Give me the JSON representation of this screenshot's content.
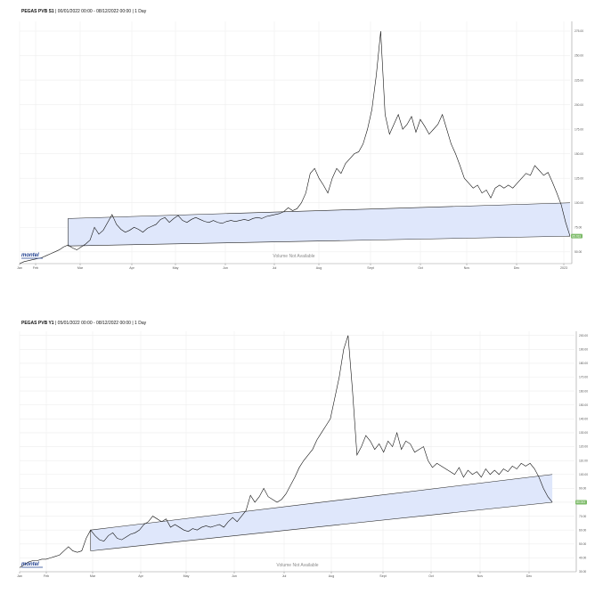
{
  "chart_data": [
    {
      "type": "line",
      "title": "PEGAS PVB S1 | 00/01/2022 00:00 - 08/12/2022 00:00 | 1 Day",
      "title_bold": "PEGAS PVB S1",
      "title_rest": " | 00/01/2022 00:00 - 08/12/2022 00:00 | 1 Day",
      "x_tick_labels": [
        "Jan",
        "Feb",
        "Mar",
        "Apr",
        "May",
        "Jun",
        "Jul",
        "Aug",
        "Sept",
        "Oct",
        "Nov",
        "Dec",
        "2023"
      ],
      "y_tick_labels": [
        "50.00",
        "75.00",
        "100.00",
        "125.00",
        "150.00",
        "175.00",
        "200.00",
        "225.00",
        "250.00",
        "275.00"
      ],
      "ylim": [
        38,
        285
      ],
      "grid": true,
      "annotation": "Volume Not Available",
      "logo": "montel",
      "last_value_label": "65.763",
      "last_value": 66,
      "series": [
        {
          "values": [
            [
              0.0,
              38
            ],
            [
              1.0,
              40
            ],
            [
              2.0,
              41
            ],
            [
              3.0,
              42
            ],
            [
              4.0,
              43
            ],
            [
              5.0,
              44
            ],
            [
              6.0,
              46
            ],
            [
              7.0,
              48
            ],
            [
              8.0,
              50
            ],
            [
              9.0,
              52
            ],
            [
              10.0,
              55
            ],
            [
              11.0,
              57
            ],
            [
              12.0,
              54
            ],
            [
              13.0,
              52
            ],
            [
              14.0,
              55
            ],
            [
              15.0,
              58
            ],
            [
              16.0,
              62
            ],
            [
              17.0,
              75
            ],
            [
              18.0,
              68
            ],
            [
              19.0,
              72
            ],
            [
              20.0,
              80
            ],
            [
              21.0,
              88
            ],
            [
              22.0,
              78
            ],
            [
              23.0,
              73
            ],
            [
              24.0,
              70
            ],
            [
              25.0,
              72
            ],
            [
              26.0,
              75
            ],
            [
              27.0,
              73
            ],
            [
              28.0,
              70
            ],
            [
              29.0,
              74
            ],
            [
              30.0,
              76
            ],
            [
              31.0,
              78
            ],
            [
              32.0,
              83
            ],
            [
              33.0,
              85
            ],
            [
              34.0,
              80
            ],
            [
              35.0,
              84
            ],
            [
              36.0,
              87
            ],
            [
              37.0,
              82
            ],
            [
              38.0,
              80
            ],
            [
              39.0,
              83
            ],
            [
              40.0,
              85
            ],
            [
              41.0,
              83
            ],
            [
              42.0,
              81
            ],
            [
              43.0,
              80
            ],
            [
              44.0,
              82
            ],
            [
              45.0,
              80
            ],
            [
              46.0,
              79
            ],
            [
              47.0,
              81
            ],
            [
              48.0,
              82
            ],
            [
              49.0,
              81
            ],
            [
              50.0,
              82
            ],
            [
              51.0,
              83
            ],
            [
              52.0,
              82
            ],
            [
              53.0,
              84
            ],
            [
              54.0,
              85
            ],
            [
              55.0,
              84
            ],
            [
              56.0,
              86
            ],
            [
              57.0,
              87
            ],
            [
              58.0,
              88
            ],
            [
              59.0,
              89
            ],
            [
              60.0,
              91
            ],
            [
              61.0,
              95
            ],
            [
              62.0,
              92
            ],
            [
              63.0,
              94
            ],
            [
              64.0,
              100
            ],
            [
              65.0,
              110
            ],
            [
              66.0,
              130
            ],
            [
              67.0,
              135
            ],
            [
              68.0,
              125
            ],
            [
              69.0,
              118
            ],
            [
              70.0,
              110
            ],
            [
              71.0,
              125
            ],
            [
              72.0,
              135
            ],
            [
              73.0,
              130
            ],
            [
              74.0,
              140
            ],
            [
              75.0,
              145
            ],
            [
              76.0,
              150
            ],
            [
              77.0,
              152
            ],
            [
              78.0,
              160
            ],
            [
              79.0,
              175
            ],
            [
              80.0,
              195
            ],
            [
              81.0,
              230
            ],
            [
              82.0,
              275
            ],
            [
              83.0,
              190
            ],
            [
              84.0,
              170
            ],
            [
              85.0,
              180
            ],
            [
              86.0,
              190
            ],
            [
              87.0,
              175
            ],
            [
              88.0,
              180
            ],
            [
              89.0,
              188
            ],
            [
              90.0,
              172
            ],
            [
              91.0,
              185
            ],
            [
              92.0,
              178
            ],
            [
              93.0,
              170
            ],
            [
              94.0,
              175
            ],
            [
              95.0,
              180
            ],
            [
              96.0,
              190
            ],
            [
              97.0,
              175
            ],
            [
              98.0,
              160
            ],
            [
              99.0,
              150
            ],
            [
              100.0,
              138
            ],
            [
              101.0,
              125
            ],
            [
              102.0,
              120
            ],
            [
              103.0,
              115
            ],
            [
              104.0,
              118
            ],
            [
              105.0,
              110
            ],
            [
              106.0,
              113
            ],
            [
              107.0,
              105
            ],
            [
              108.0,
              115
            ],
            [
              109.0,
              118
            ],
            [
              110.0,
              115
            ],
            [
              111.0,
              118
            ],
            [
              112.0,
              115
            ],
            [
              113.0,
              120
            ],
            [
              114.0,
              125
            ],
            [
              115.0,
              130
            ],
            [
              116.0,
              128
            ],
            [
              117.0,
              138
            ],
            [
              118.0,
              133
            ],
            [
              119.0,
              128
            ],
            [
              120.0,
              131
            ],
            [
              121.0,
              121
            ],
            [
              122.0,
              110
            ],
            [
              123.0,
              98
            ],
            [
              124.0,
              80
            ],
            [
              125.0,
              66
            ]
          ]
        }
      ],
      "band": {
        "lower": [
          [
            11.0,
            56
          ],
          [
            125.0,
            66
          ]
        ],
        "upper": [
          [
            11.0,
            84
          ],
          [
            125.0,
            100
          ]
        ]
      }
    },
    {
      "type": "line",
      "title": "PEGAS PVB Y1 | 05/01/2022 00:00 - 08/12/2022 00:00 | 1 Day",
      "title_bold": "PEGAS PVB Y1",
      "title_rest": " | 05/01/2022 00:00 - 08/12/2022 00:00 | 1 Day",
      "x_tick_labels": [
        "Jan",
        "Feb",
        "Mar",
        "Apr",
        "May",
        "Jun",
        "Jul",
        "Aug",
        "Sept",
        "Oct",
        "Nov",
        "Dec"
      ],
      "y_tick_labels": [
        "30.00",
        "40.00",
        "50.00",
        "60.00",
        "70.00",
        "80.00",
        "90.00",
        "100.00",
        "110.00",
        "120.00",
        "130.00",
        "140.00",
        "150.00",
        "160.00",
        "170.00",
        "180.00",
        "190.00",
        "200.00"
      ],
      "ylim": [
        30,
        203
      ],
      "grid": true,
      "annotation": "Volume Not Available",
      "logo": "montel",
      "last_value_label": "80.003",
      "last_value": 80,
      "series": [
        {
          "values": [
            [
              0.0,
              33
            ],
            [
              1.0,
              35
            ],
            [
              2.0,
              37
            ],
            [
              3.0,
              38
            ],
            [
              4.0,
              38
            ],
            [
              5.0,
              39
            ],
            [
              6.0,
              39
            ],
            [
              7.0,
              40
            ],
            [
              8.0,
              41
            ],
            [
              9.0,
              42
            ],
            [
              10.0,
              45
            ],
            [
              11.0,
              48
            ],
            [
              12.0,
              45
            ],
            [
              13.0,
              44
            ],
            [
              14.0,
              45
            ],
            [
              15.0,
              54
            ],
            [
              16.0,
              60
            ],
            [
              17.0,
              56
            ],
            [
              18.0,
              53
            ],
            [
              19.0,
              52
            ],
            [
              20.0,
              56
            ],
            [
              21.0,
              58
            ],
            [
              22.0,
              54
            ],
            [
              23.0,
              53
            ],
            [
              24.0,
              55
            ],
            [
              25.0,
              57
            ],
            [
              26.0,
              58
            ],
            [
              27.0,
              60
            ],
            [
              28.0,
              64
            ],
            [
              29.0,
              66
            ],
            [
              30.0,
              70
            ],
            [
              31.0,
              68
            ],
            [
              32.0,
              66
            ],
            [
              33.0,
              68
            ],
            [
              34.0,
              62
            ],
            [
              35.0,
              64
            ],
            [
              36.0,
              62
            ],
            [
              37.0,
              60
            ],
            [
              38.0,
              59
            ],
            [
              39.0,
              61
            ],
            [
              40.0,
              60
            ],
            [
              41.0,
              62
            ],
            [
              42.0,
              63
            ],
            [
              43.0,
              62
            ],
            [
              44.0,
              63
            ],
            [
              45.0,
              64
            ],
            [
              46.0,
              62
            ],
            [
              47.0,
              66
            ],
            [
              48.0,
              69
            ],
            [
              49.0,
              66
            ],
            [
              50.0,
              70
            ],
            [
              51.0,
              74
            ],
            [
              52.0,
              85
            ],
            [
              53.0,
              80
            ],
            [
              54.0,
              84
            ],
            [
              55.0,
              90
            ],
            [
              56.0,
              84
            ],
            [
              57.0,
              82
            ],
            [
              58.0,
              80
            ],
            [
              59.0,
              82
            ],
            [
              60.0,
              86
            ],
            [
              61.0,
              92
            ],
            [
              62.0,
              98
            ],
            [
              63.0,
              105
            ],
            [
              64.0,
              110
            ],
            [
              65.0,
              114
            ],
            [
              66.0,
              118
            ],
            [
              67.0,
              125
            ],
            [
              68.0,
              130
            ],
            [
              69.0,
              135
            ],
            [
              70.0,
              140
            ],
            [
              71.0,
              155
            ],
            [
              72.0,
              170
            ],
            [
              73.0,
              190
            ],
            [
              74.0,
              200
            ],
            [
              75.0,
              160
            ],
            [
              76.0,
              114
            ],
            [
              77.0,
              120
            ],
            [
              78.0,
              128
            ],
            [
              79.0,
              124
            ],
            [
              80.0,
              118
            ],
            [
              81.0,
              122
            ],
            [
              82.0,
              116
            ],
            [
              83.0,
              124
            ],
            [
              84.0,
              120
            ],
            [
              85.0,
              130
            ],
            [
              86.0,
              118
            ],
            [
              87.0,
              124
            ],
            [
              88.0,
              122
            ],
            [
              89.0,
              116
            ],
            [
              90.0,
              118
            ],
            [
              91.0,
              120
            ],
            [
              92.0,
              110
            ],
            [
              93.0,
              105
            ],
            [
              94.0,
              108
            ],
            [
              95.0,
              106
            ],
            [
              96.0,
              104
            ],
            [
              97.0,
              102
            ],
            [
              98.0,
              100
            ],
            [
              99.0,
              105
            ],
            [
              100.0,
              98
            ],
            [
              101.0,
              103
            ],
            [
              102.0,
              100
            ],
            [
              103.0,
              102
            ],
            [
              104.0,
              98
            ],
            [
              105.0,
              104
            ],
            [
              106.0,
              100
            ],
            [
              107.0,
              103
            ],
            [
              108.0,
              100
            ],
            [
              109.0,
              104
            ],
            [
              110.0,
              102
            ],
            [
              111.0,
              106
            ],
            [
              112.0,
              104
            ],
            [
              113.0,
              108
            ],
            [
              114.0,
              106
            ],
            [
              115.0,
              108
            ],
            [
              116.0,
              104
            ],
            [
              117.0,
              98
            ],
            [
              118.0,
              90
            ],
            [
              119.0,
              84
            ],
            [
              120.0,
              80
            ]
          ]
        }
      ],
      "band": {
        "lower": [
          [
            16.0,
            45
          ],
          [
            120.0,
            80
          ]
        ],
        "upper": [
          [
            16.0,
            60
          ],
          [
            120.0,
            100
          ]
        ]
      }
    }
  ]
}
